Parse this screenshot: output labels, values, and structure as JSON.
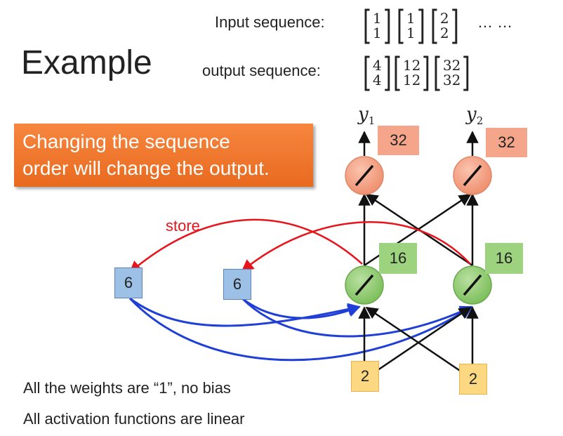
{
  "title": "Example",
  "input_label": "Input sequence:",
  "output_label": "output sequence:",
  "input_vectors": [
    [
      "1",
      "1"
    ],
    [
      "1",
      "1"
    ],
    [
      "2",
      "2"
    ]
  ],
  "input_ellipsis": "…  …",
  "output_vectors": [
    [
      "4",
      "4"
    ],
    [
      "12",
      "12"
    ],
    [
      "32",
      "32"
    ]
  ],
  "callout": {
    "line1": "Changing the sequence",
    "line2": "order will change the output."
  },
  "store_label": "store",
  "y_labels": [
    {
      "base": "y",
      "sub": "1"
    },
    {
      "base": "y",
      "sub": "2"
    }
  ],
  "output_values": [
    "32",
    "32"
  ],
  "hidden_values": [
    "16",
    "16"
  ],
  "memory_values": [
    "6",
    "6"
  ],
  "input_values": [
    "2",
    "2"
  ],
  "notes": [
    "All the weights are “1”, no bias",
    "All activation functions are linear"
  ],
  "colors": {
    "callout": "#f07a30",
    "output_node": "#f4a58a",
    "hidden_node": "#9dd27e",
    "memory_cell": "#9dc0e6",
    "input_cell": "#fdd882",
    "store_arrow": "#e8141c",
    "memory_arrow": "#1f3fd6"
  }
}
